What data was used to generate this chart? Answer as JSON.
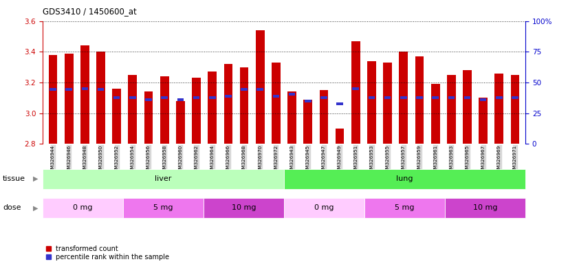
{
  "title": "GDS3410 / 1450600_at",
  "samples": [
    "GSM326944",
    "GSM326946",
    "GSM326948",
    "GSM326950",
    "GSM326952",
    "GSM326954",
    "GSM326956",
    "GSM326958",
    "GSM326960",
    "GSM326962",
    "GSM326964",
    "GSM326966",
    "GSM326968",
    "GSM326970",
    "GSM326972",
    "GSM326943",
    "GSM326945",
    "GSM326947",
    "GSM326949",
    "GSM326951",
    "GSM326953",
    "GSM326955",
    "GSM326957",
    "GSM326959",
    "GSM326961",
    "GSM326963",
    "GSM326965",
    "GSM326967",
    "GSM326969",
    "GSM326971"
  ],
  "transformed_counts": [
    3.38,
    3.39,
    3.44,
    3.4,
    3.16,
    3.25,
    3.14,
    3.24,
    3.08,
    3.23,
    3.27,
    3.32,
    3.3,
    3.54,
    3.33,
    3.14,
    3.09,
    3.15,
    2.9,
    3.47,
    3.34,
    3.33,
    3.4,
    3.37,
    3.19,
    3.25,
    3.28,
    3.1,
    3.26,
    3.25
  ],
  "percentile_values": [
    3.155,
    3.155,
    3.16,
    3.155,
    3.1,
    3.1,
    3.09,
    3.1,
    3.09,
    3.1,
    3.1,
    3.11,
    3.155,
    3.155,
    3.11,
    3.125,
    3.08,
    3.1,
    3.06,
    3.16,
    3.1,
    3.1,
    3.1,
    3.1,
    3.1,
    3.1,
    3.1,
    3.09,
    3.1,
    3.1
  ],
  "ylim": [
    2.8,
    3.6
  ],
  "yticks_left": [
    2.8,
    3.0,
    3.2,
    3.4,
    3.6
  ],
  "right_ylim": [
    0,
    100
  ],
  "right_yticks": [
    0,
    25,
    50,
    75,
    100
  ],
  "bar_color": "#cc0000",
  "blue_color": "#3333cc",
  "plot_bg_color": "#f0f0f0",
  "tissue_groups": [
    {
      "label": "liver",
      "start": 0,
      "end": 15,
      "color": "#bbffbb"
    },
    {
      "label": "lung",
      "start": 15,
      "end": 30,
      "color": "#55ee55"
    }
  ],
  "dose_groups": [
    {
      "label": "0 mg",
      "start": 0,
      "end": 5,
      "color": "#ffccff"
    },
    {
      "label": "5 mg",
      "start": 5,
      "end": 10,
      "color": "#ee77ee"
    },
    {
      "label": "10 mg",
      "start": 10,
      "end": 15,
      "color": "#cc44cc"
    },
    {
      "label": "0 mg",
      "start": 15,
      "end": 20,
      "color": "#ffccff"
    },
    {
      "label": "5 mg",
      "start": 20,
      "end": 25,
      "color": "#ee77ee"
    },
    {
      "label": "10 mg",
      "start": 25,
      "end": 30,
      "color": "#cc44cc"
    }
  ],
  "legend_items": [
    {
      "label": "transformed count",
      "color": "#cc0000"
    },
    {
      "label": "percentile rank within the sample",
      "color": "#3333cc"
    }
  ],
  "left_tick_color": "#cc0000",
  "right_tick_color": "#0000cc",
  "bar_width": 0.55
}
